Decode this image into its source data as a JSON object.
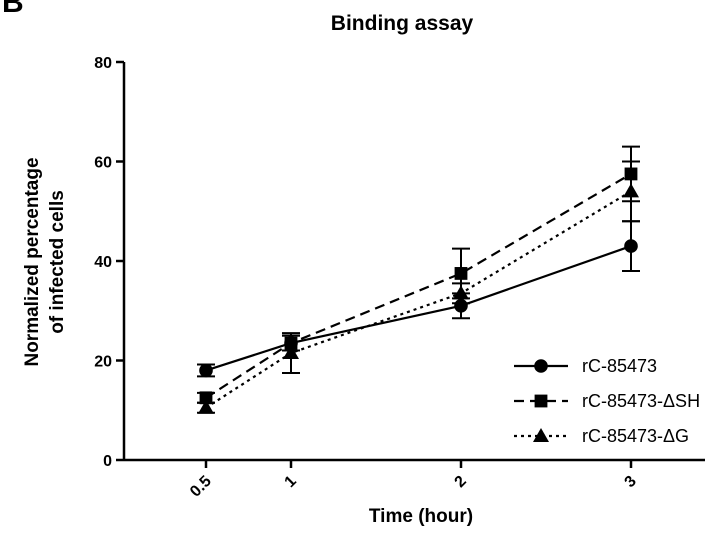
{
  "panel_label": "B",
  "chart_data": {
    "type": "line",
    "title": "Binding assay",
    "xlabel": "Time (hour)",
    "ylabel_lines": [
      "Normalized percentage",
      "of infected cells"
    ],
    "x": [
      0.5,
      1,
      2,
      3
    ],
    "x_tick_labels": [
      "0.5",
      "1",
      "2",
      "3"
    ],
    "ylim": [
      0,
      80
    ],
    "y_ticks": [
      0,
      20,
      40,
      60,
      80
    ],
    "grid": false,
    "legend_position": "lower-right",
    "series": [
      {
        "name": "rC-85473",
        "marker": "circle",
        "dash": "solid",
        "values": [
          18,
          23.5,
          31,
          43
        ],
        "errors": [
          1.2,
          1.5,
          2.5,
          5
        ]
      },
      {
        "name": "rC-85473-ΔSH",
        "marker": "square",
        "dash": "dashed",
        "values": [
          12.5,
          23.5,
          37.5,
          57.5
        ],
        "errors": [
          1,
          1.5,
          5,
          5.5
        ]
      },
      {
        "name": "rC-85473-ΔG",
        "marker": "triangle",
        "dash": "dotted",
        "values": [
          10.5,
          21.5,
          33.5,
          54
        ],
        "errors": [
          1,
          4,
          2,
          6
        ]
      }
    ]
  }
}
